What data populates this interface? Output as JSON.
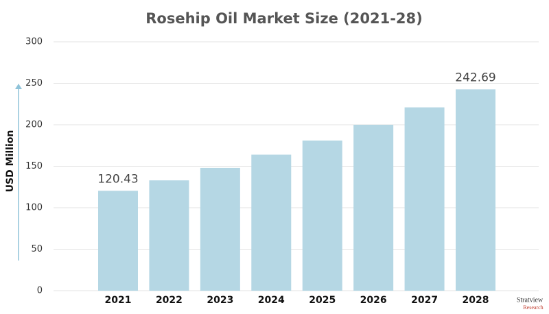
{
  "chart_data": {
    "type": "bar",
    "title": "Rosehip Oil Market Size (2021-28)",
    "y_label": "USD Million",
    "categories": [
      "2021",
      "2022",
      "2023",
      "2024",
      "2025",
      "2026",
      "2027",
      "2028"
    ],
    "values": [
      120.43,
      133,
      148,
      164,
      181,
      200,
      221,
      242.69
    ],
    "value_labels": [
      "120.43",
      null,
      null,
      null,
      null,
      null,
      null,
      "242.69"
    ],
    "color": "#b5d7e4",
    "ylim": [
      0,
      300
    ],
    "yticks": [
      0,
      50,
      100,
      150,
      200,
      250,
      300
    ],
    "grid": true,
    "logo": [
      "Stratview",
      "Research"
    ]
  }
}
